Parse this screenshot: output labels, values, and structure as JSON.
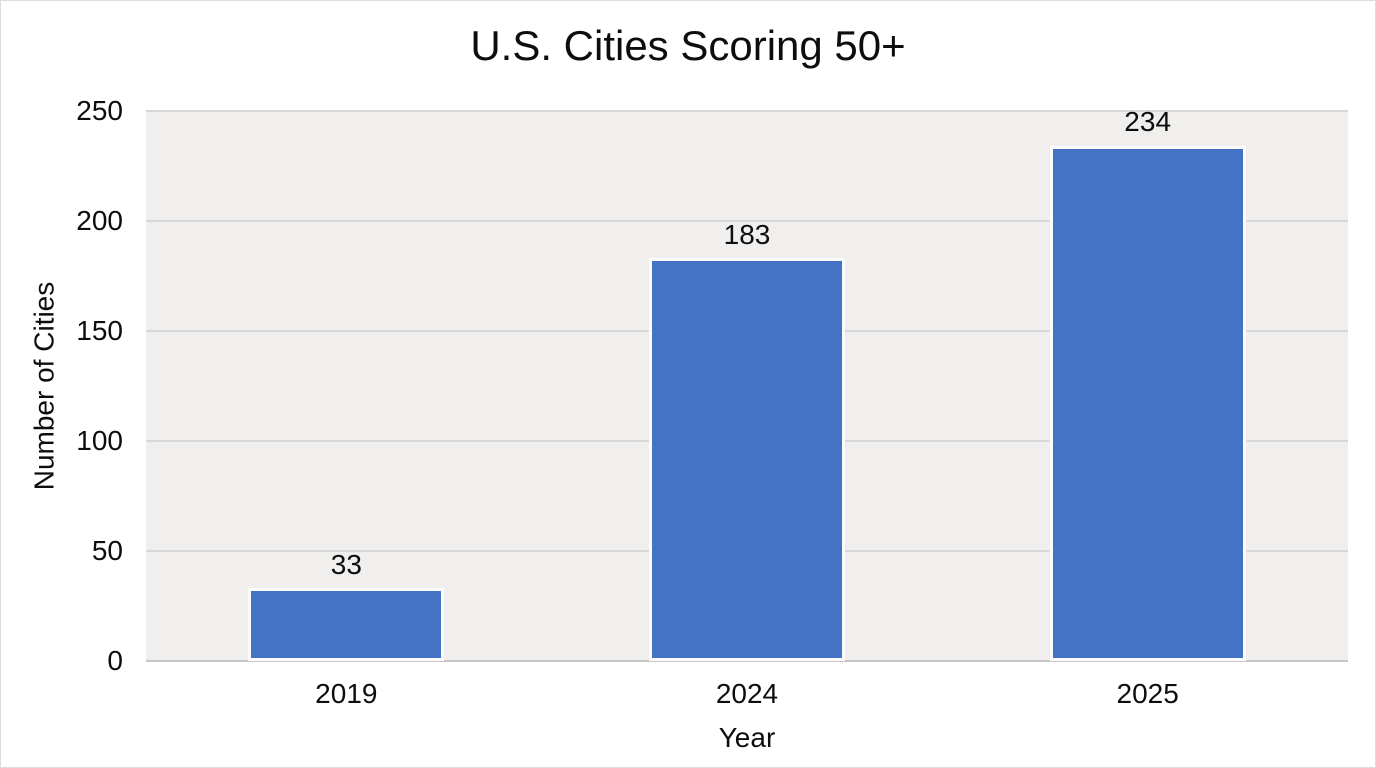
{
  "chart_data": {
    "type": "bar",
    "title": "U.S. Cities Scoring 50+",
    "xlabel": "Year",
    "ylabel": "Number of Cities",
    "categories": [
      "2019",
      "2024",
      "2025"
    ],
    "values": [
      33,
      183,
      234
    ],
    "data_labels": [
      "33",
      "183",
      "234"
    ],
    "ylim": [
      0,
      250
    ],
    "ytick_step": 50,
    "yticks": [
      "0",
      "50",
      "100",
      "150",
      "200",
      "250"
    ],
    "grid": "horizontal-gridlines-on",
    "legend": "none"
  },
  "colors": {
    "bar_fill": "#4472c4",
    "bar_border": "#fbfbfb",
    "plot_background": "#f0efed",
    "gridline": "#d8d8d8",
    "axis_line": "#c6c6c6",
    "text": "#0d0d0d",
    "page_background": "#ffffff"
  }
}
